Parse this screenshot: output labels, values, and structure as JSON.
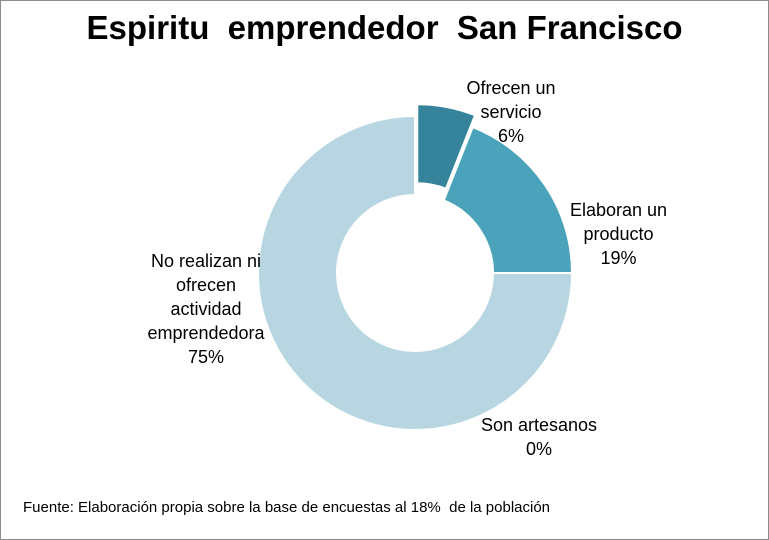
{
  "chart_data": {
    "type": "pie",
    "variant": "doughnut",
    "title": "Espiritu  emprendedor  San Francisco",
    "slices": [
      {
        "label": "Ofrecen un servicio",
        "label_lines": [
          "Ofrecen un",
          "servicio"
        ],
        "value": 6,
        "value_label": "6%",
        "color": "#35849b",
        "exploded": true
      },
      {
        "label": "Elaboran un producto",
        "label_lines": [
          "Elaboran un",
          "producto"
        ],
        "value": 19,
        "value_label": "19%",
        "color": "#4aa3bb",
        "exploded": false
      },
      {
        "label": "Son artesanos",
        "label_lines": [
          "Son artesanos"
        ],
        "value": 0,
        "value_label": "0%",
        "color": "#6fb8cc",
        "exploded": false
      },
      {
        "label": "No realizan ni ofrecen actividad emprendedora",
        "label_lines": [
          "No realizan ni",
          "ofrecen",
          "actividad",
          "emprendedora"
        ],
        "value": 75,
        "value_label": "75%",
        "color": "#b8d6e1",
        "exploded": false
      }
    ],
    "legend": "none"
  },
  "footer": {
    "source": "Fuente: Elaboración propia sobre la base de encuestas al 18%  de la población"
  }
}
